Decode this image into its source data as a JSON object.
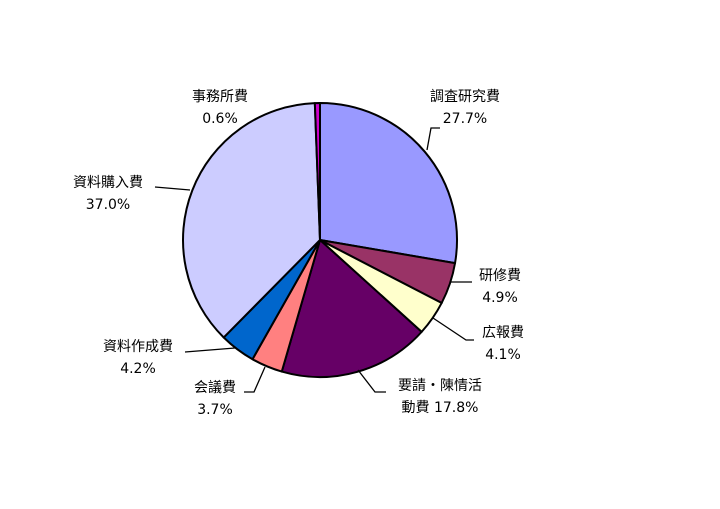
{
  "chart_data": {
    "type": "pie",
    "title": "",
    "start_angle": "12 o'clock",
    "direction": "clockwise",
    "slices": [
      {
        "label": "調査研究費",
        "value": 27.7,
        "value_label": "27.7%",
        "color": "#9999FF"
      },
      {
        "label": "研修費",
        "value": 4.9,
        "value_label": "4.9%",
        "color": "#993366"
      },
      {
        "label": "広報費",
        "value": 4.1,
        "value_label": "4.1%",
        "color": "#FFFFCC"
      },
      {
        "label": "要請・陳情活動費",
        "label_line1": "要請・陳情活",
        "label_line2": "動費 17.8%",
        "value": 17.8,
        "value_label": "17.8%",
        "color": "#660066"
      },
      {
        "label": "会議費",
        "value": 3.7,
        "value_label": "3.7%",
        "color": "#FF8080"
      },
      {
        "label": "資料作成費",
        "value": 4.2,
        "value_label": "4.2%",
        "color": "#0066CC"
      },
      {
        "label": "資料購入費",
        "value": 37.0,
        "value_label": "37.0%",
        "color": "#CCCCFF"
      },
      {
        "label": "事務所費",
        "value": 0.6,
        "value_label": "0.6%",
        "color": "#CC00CC"
      }
    ]
  }
}
